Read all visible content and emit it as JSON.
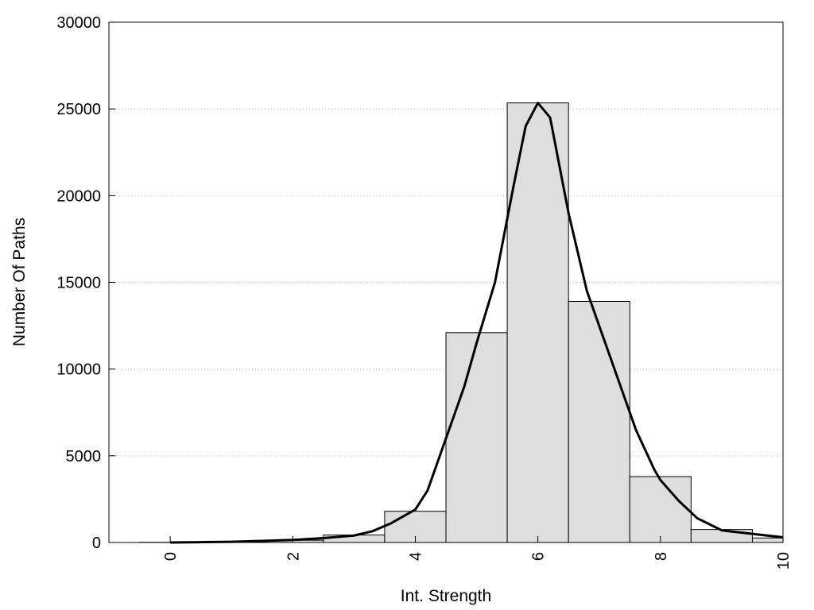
{
  "chart_data": {
    "type": "bar",
    "title": "",
    "xlabel": "Int. Strength",
    "ylabel": "Number Of Paths",
    "xlim": [
      -1,
      10
    ],
    "ylim": [
      0,
      30000
    ],
    "xticks": [
      0,
      2,
      4,
      6,
      8,
      10
    ],
    "yticks": [
      0,
      5000,
      10000,
      15000,
      20000,
      25000,
      30000
    ],
    "grid": "horizontal dotted",
    "bar_color": "#dedede",
    "bars": [
      {
        "x": 0,
        "value": 10
      },
      {
        "x": 1,
        "value": 40
      },
      {
        "x": 2,
        "value": 130
      },
      {
        "x": 3,
        "value": 430
      },
      {
        "x": 4,
        "value": 1800
      },
      {
        "x": 5,
        "value": 12100
      },
      {
        "x": 6,
        "value": 25350
      },
      {
        "x": 7,
        "value": 13900
      },
      {
        "x": 8,
        "value": 3800
      },
      {
        "x": 9,
        "value": 750
      },
      {
        "x": 10,
        "value": 260
      }
    ],
    "bar_width": 1,
    "curve": {
      "type": "line",
      "color": "#000000",
      "x": [
        0,
        0.5,
        1,
        1.5,
        2,
        2.5,
        3,
        3.3,
        3.6,
        4,
        4.2,
        4.5,
        4.8,
        5,
        5.3,
        5.6,
        5.8,
        6,
        6.2,
        6.5,
        6.8,
        7,
        7.3,
        7.6,
        7.9,
        8,
        8.3,
        8.6,
        9,
        9.5,
        10
      ],
      "y": [
        0,
        20,
        40,
        90,
        150,
        250,
        400,
        650,
        1100,
        1900,
        3000,
        6000,
        9000,
        11500,
        15000,
        20500,
        24000,
        25350,
        24500,
        19000,
        14500,
        12500,
        9500,
        6500,
        4200,
        3600,
        2400,
        1400,
        700,
        500,
        300
      ]
    }
  }
}
